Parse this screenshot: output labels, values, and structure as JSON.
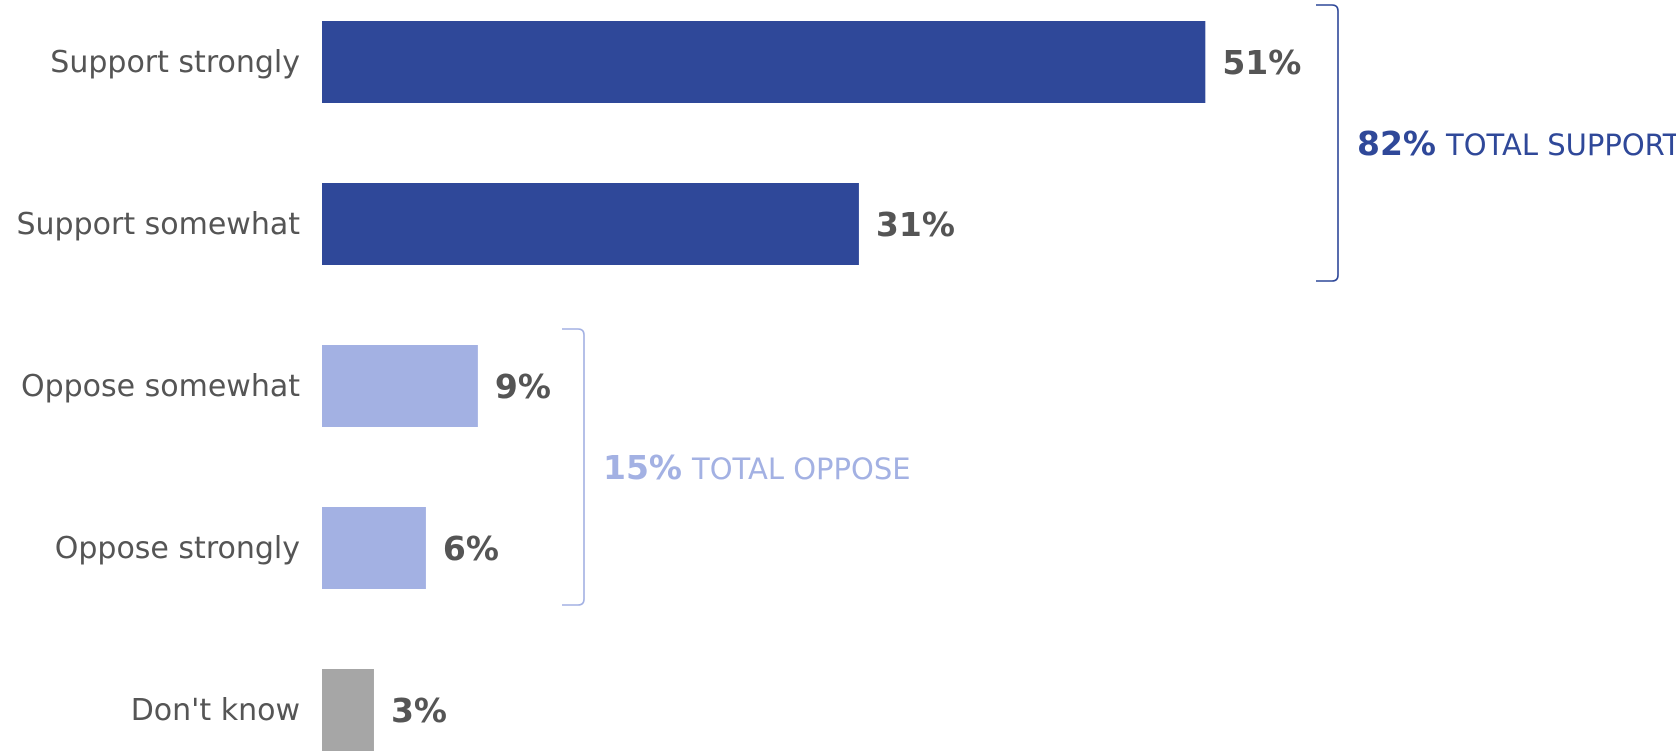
{
  "chart_data": {
    "type": "bar",
    "orientation": "horizontal",
    "categories": [
      "Support strongly",
      "Support somewhat",
      "Oppose somewhat",
      "Oppose strongly",
      "Don't know"
    ],
    "values": [
      51,
      31,
      9,
      6,
      3
    ],
    "value_labels": [
      "51%",
      "31%",
      "9%",
      "6%",
      "3%"
    ],
    "bar_colors": [
      "#2f4899",
      "#2f4899",
      "#a3b1e3",
      "#a3b1e3",
      "#a6a6a6"
    ],
    "value_max": 51,
    "groups": [
      {
        "id": "support",
        "from_index": 0,
        "to_index": 1,
        "value_label": "82%",
        "label": "TOTAL SUPPORT",
        "color": "#2f4899"
      },
      {
        "id": "oppose",
        "from_index": 2,
        "to_index": 3,
        "value_label": "15%",
        "label": "TOTAL OPPOSE",
        "color": "#a3b1e3"
      }
    ]
  }
}
